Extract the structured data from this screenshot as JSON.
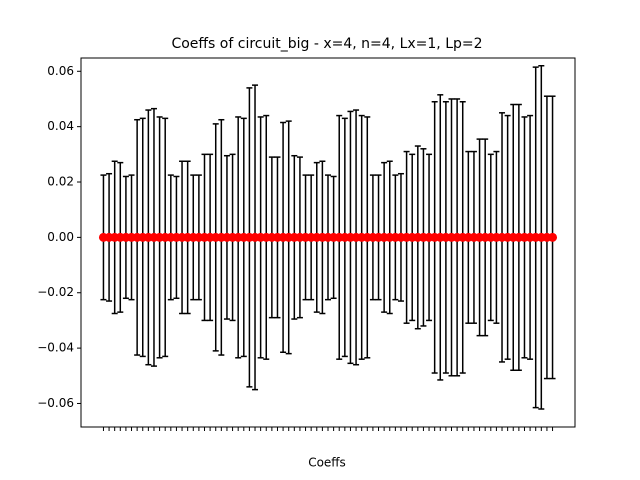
{
  "chart_data": {
    "type": "errorbar",
    "title": "Coeffs of circuit_big - x=4, n=4, Lx=1, Lp=2",
    "xlabel": "Coeffs",
    "categories": [
      null,
      null,
      null,
      null,
      null,
      null,
      null,
      null,
      null,
      null,
      null,
      null,
      null,
      null,
      null,
      null,
      null,
      null,
      null,
      null,
      null,
      null,
      null,
      null,
      null,
      null,
      null,
      null,
      null,
      null,
      null,
      null,
      null,
      null,
      null,
      null,
      null,
      null,
      null,
      null,
      null,
      null,
      null,
      null,
      null,
      null,
      null,
      null,
      null,
      null,
      null,
      null,
      null,
      null,
      null,
      null,
      null,
      null,
      null,
      null,
      null,
      null,
      null,
      null,
      null,
      null,
      null,
      null,
      null,
      null,
      null,
      null,
      null,
      null,
      null,
      null,
      null,
      null,
      null,
      null,
      null
    ],
    "series": [
      {
        "color": "#ff0000",
        "ecolor": "#000000",
        "values": [
          0,
          0,
          0,
          0,
          0,
          0,
          0,
          0,
          0,
          0,
          0,
          0,
          0,
          0,
          0,
          0,
          0,
          0,
          0,
          0,
          0,
          0,
          0,
          0,
          0,
          0,
          0,
          0,
          0,
          0,
          0,
          0,
          0,
          0,
          0,
          0,
          0,
          0,
          0,
          0,
          0,
          0,
          0,
          0,
          0,
          0,
          0,
          0,
          0,
          0,
          0,
          0,
          0,
          0,
          0,
          0,
          0,
          0,
          0,
          0,
          0,
          0,
          0,
          0,
          0,
          0,
          0,
          0,
          0,
          0,
          0,
          0,
          0,
          0,
          0,
          0,
          0,
          0,
          0,
          0,
          0
        ],
        "errors": [
          0.0225,
          0.023,
          0.0275,
          0.027,
          0.022,
          0.0225,
          0.0425,
          0.043,
          0.046,
          0.0465,
          0.0435,
          0.043,
          0.0225,
          0.022,
          0.0275,
          0.0275,
          0.0225,
          0.0225,
          0.03,
          0.03,
          0.041,
          0.0425,
          0.0295,
          0.03,
          0.0435,
          0.043,
          0.054,
          0.055,
          0.0435,
          0.044,
          0.029,
          0.029,
          0.0415,
          0.042,
          0.0295,
          0.029,
          0.0225,
          0.0225,
          0.027,
          0.0275,
          0.0225,
          0.022,
          0.044,
          0.043,
          0.0455,
          0.046,
          0.044,
          0.0435,
          0.0225,
          0.0225,
          0.027,
          0.0275,
          0.0225,
          0.023,
          0.031,
          0.03,
          0.033,
          0.032,
          0.03,
          0.049,
          0.0515,
          0.049,
          0.05,
          0.05,
          0.049,
          0.031,
          0.031,
          0.0355,
          0.0355,
          0.03,
          0.031,
          0.045,
          0.044,
          0.048,
          0.048,
          0.0435,
          0.044,
          0.0615,
          0.062,
          0.051,
          0.051
        ]
      }
    ],
    "xlim": [
      -4,
      84
    ],
    "ylim": [
      -0.0685,
      0.0648
    ],
    "yticks": [
      {
        "value": -0.06,
        "label": "−0.06"
      },
      {
        "value": -0.04,
        "label": "−0.04"
      },
      {
        "value": -0.02,
        "label": "−0.02"
      },
      {
        "value": 0,
        "label": "0.00"
      },
      0.02,
      0.04,
      0.06
    ],
    "grid": false
  }
}
